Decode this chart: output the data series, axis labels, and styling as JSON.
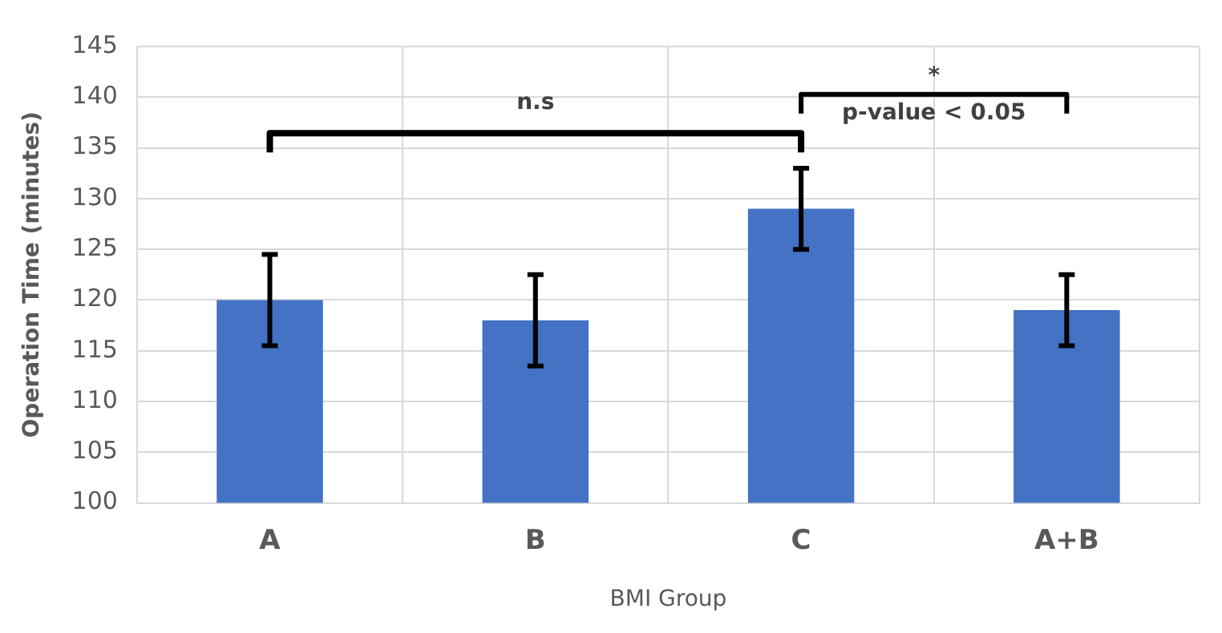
{
  "chart_data": {
    "type": "bar",
    "xlabel": "BMI Group",
    "ylabel": "Operation Time (minutes)",
    "categories": [
      "A",
      "B",
      "C",
      "A+B"
    ],
    "values": [
      120,
      118,
      129,
      119
    ],
    "errors": [
      4.5,
      4.5,
      4,
      3.5
    ],
    "color": "#4472c4",
    "ylim": [
      100,
      145
    ],
    "yticks": [
      100,
      105,
      110,
      115,
      120,
      125,
      130,
      135,
      140,
      145
    ],
    "grid": true,
    "annotations": [
      "n.s",
      "*",
      "p-value < 0.05"
    ]
  }
}
